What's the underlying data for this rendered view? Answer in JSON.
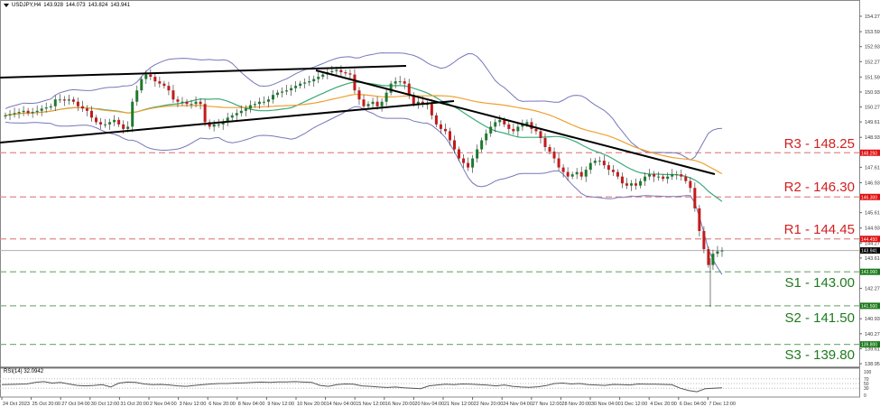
{
  "header": {
    "symbol_tf": "USDJPY,H4",
    "open": "143.928",
    "high": "144.073",
    "low": "143.824",
    "close": "143.941"
  },
  "rsi": {
    "label": "RSI(14) 32.0942",
    "levels": [
      "100",
      "70",
      "50",
      "30",
      "0"
    ]
  },
  "levels": [
    {
      "id": "r3",
      "label": "R3 - 148.25",
      "price": 148.25,
      "tag": "148.250",
      "type": "res"
    },
    {
      "id": "r2",
      "label": "R2 - 146.30",
      "price": 146.3,
      "tag": "146.300",
      "type": "res"
    },
    {
      "id": "r1",
      "label": "R1 - 144.45",
      "price": 144.45,
      "tag": "144.450",
      "type": "res"
    },
    {
      "id": "s1",
      "label": "S1 - 143.00",
      "price": 143.0,
      "tag": "143.000",
      "type": "sup"
    },
    {
      "id": "s2",
      "label": "S2 - 141.50",
      "price": 141.5,
      "tag": "141.500",
      "type": "sup"
    },
    {
      "id": "s3",
      "label": "S3 - 139.80",
      "price": 139.8,
      "tag": "139.800",
      "type": "sup"
    }
  ],
  "current_price": {
    "value": 143.941,
    "tag": "143.941"
  },
  "colors": {
    "bull": "#1e7a2e",
    "bear": "#c41a1a",
    "res_line": "#e08a8a",
    "sup_line": "#7fb07f",
    "bands": "#7777bb",
    "ma_fast": "#3aaa77",
    "ma_slow": "#f0a030",
    "trend": "#000000"
  },
  "chart_data": {
    "type": "line",
    "title": "USDJPY,H4",
    "xlabel": "",
    "ylabel": "",
    "ylim": [
      138.95,
      154.27
    ],
    "y_ticks": [
      "154.270",
      "153.590",
      "152.930",
      "152.270",
      "151.590",
      "150.930",
      "150.270",
      "149.610",
      "148.930",
      "147.610",
      "146.930",
      "145.610",
      "144.930",
      "144.270",
      "143.610",
      "142.270",
      "140.930",
      "140.270",
      "139.610",
      "138.950"
    ],
    "x_ticks": [
      "24 Oct 2023",
      "25 Oct 20:00",
      "27 Oct 04:00",
      "30 Oct 12:00",
      "31 Oct 20:00",
      "2 Nov 04:00",
      "3 Nov 12:00",
      "6 Nov 20:00",
      "8 Nov 04:00",
      "9 Nov 12:00",
      "10 Nov 20:00",
      "14 Nov 04:00",
      "15 Nov 12:00",
      "16 Nov 20:00",
      "20 Nov 04:00",
      "21 Nov 12:00",
      "22 Nov 20:00",
      "24 Nov 04:00",
      "27 Nov 12:00",
      "28 Nov 20:00",
      "30 Nov 04:00",
      "1 Dec 12:00",
      "4 Dec 20:00",
      "6 Dec 04:00",
      "7 Dec 12:00"
    ],
    "series": [
      {
        "name": "USDJPY close (approx.)",
        "values": [
          149.9,
          149.95,
          150.0,
          150.05,
          150.1,
          150.0,
          150.05,
          150.1,
          150.2,
          150.25,
          150.3,
          150.6,
          150.6,
          150.55,
          150.6,
          150.5,
          150.3,
          150.2,
          150.1,
          149.8,
          149.6,
          149.5,
          149.5,
          149.6,
          149.7,
          149.5,
          149.3,
          149.4,
          150.5,
          151.0,
          151.5,
          151.7,
          151.6,
          151.4,
          151.3,
          151.2,
          151.0,
          150.6,
          150.5,
          150.5,
          150.4,
          150.4,
          150.5,
          150.4,
          149.6,
          149.4,
          149.5,
          149.5,
          149.6,
          149.8,
          149.9,
          150.0,
          150.1,
          150.2,
          150.35,
          150.4,
          150.5,
          150.5,
          150.6,
          150.8,
          150.9,
          150.95,
          151.0,
          151.1,
          151.2,
          151.3,
          151.35,
          151.4,
          151.5,
          151.6,
          151.7,
          151.8,
          151.85,
          151.9,
          151.8,
          151.75,
          151.7,
          151.0,
          150.6,
          150.3,
          150.4,
          150.5,
          150.3,
          150.5,
          150.9,
          151.3,
          151.4,
          151.4,
          151.3,
          150.8,
          150.4,
          150.5,
          150.4,
          150.4,
          149.9,
          149.5,
          149.3,
          149.2,
          148.8,
          148.4,
          148.0,
          147.8,
          147.6,
          148.0,
          148.4,
          148.8,
          149.1,
          149.4,
          149.6,
          149.7,
          149.5,
          149.3,
          149.2,
          149.4,
          149.5,
          149.6,
          149.3,
          149.2,
          148.9,
          148.5,
          148.3,
          148.0,
          147.6,
          147.4,
          147.2,
          147.3,
          147.4,
          147.2,
          147.5,
          147.8,
          147.9,
          147.9,
          147.7,
          147.5,
          147.4,
          147.2,
          146.9,
          146.8,
          146.9,
          146.8,
          147.0,
          147.2,
          147.3,
          147.2,
          147.2,
          147.1,
          147.2,
          147.3,
          147.3,
          147.2,
          147.0,
          146.7,
          145.8,
          144.8,
          144.0,
          143.3,
          143.8,
          143.9,
          143.94
        ]
      },
      {
        "name": "RSI(14)",
        "values": [
          45,
          46,
          47,
          48,
          55,
          58,
          52,
          55,
          48,
          42,
          40,
          42,
          45,
          35,
          52,
          56,
          55,
          48,
          45,
          46,
          44,
          40,
          38,
          42,
          45,
          48,
          50,
          50,
          52,
          53,
          55,
          56,
          55,
          57,
          57,
          58,
          56,
          55,
          42,
          38,
          45,
          48,
          47,
          40,
          38,
          35,
          33,
          35,
          32,
          30,
          28,
          40,
          44,
          47,
          45,
          48,
          47,
          45,
          43,
          40,
          44,
          38,
          35,
          34,
          36,
          41,
          50,
          52,
          48,
          50,
          45,
          44,
          42,
          46,
          45,
          44,
          48,
          47,
          47,
          46,
          45,
          30,
          20,
          15,
          28,
          30,
          32
        ]
      }
    ]
  }
}
